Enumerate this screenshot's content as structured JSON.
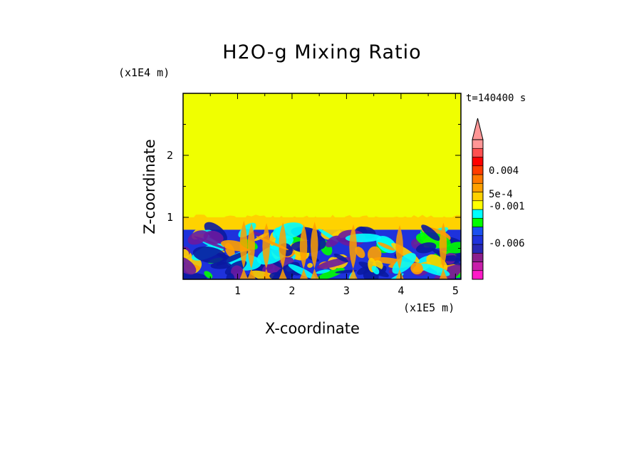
{
  "chart_data": {
    "type": "heatmap",
    "title": "H2O-g Mixing Ratio",
    "xlabel": "X-coordinate",
    "ylabel": "Z-coordinate",
    "x_unit": "(x1E5 m)",
    "y_unit": "(x1E4 m)",
    "time_label": "t=140400 s",
    "xlim": [
      0,
      5.1
    ],
    "ylim": [
      0,
      3.0
    ],
    "x_ticks": [
      "1",
      "2",
      "3",
      "4",
      "5"
    ],
    "y_ticks": [
      "1",
      "2"
    ],
    "colorbar": {
      "colors": [
        "#ff1ac8",
        "#c81eaa",
        "#8c1e8c",
        "#2828b4",
        "#1e32dc",
        "#1a50f0",
        "#00ff00",
        "#00ffff",
        "#ffff00",
        "#ffd200",
        "#ffa000",
        "#ff7800",
        "#ff3c00",
        "#ff0000",
        "#ff5050",
        "#ff9696"
      ],
      "labels": [
        "0.004",
        "5e-4",
        "-0.001",
        "-0.006"
      ],
      "extend_top": true
    },
    "regions": [
      {
        "name": "upper layer",
        "color": "#f0ff00",
        "z_range": [
          1.0,
          3.0
        ]
      },
      {
        "name": "transition band",
        "color": "#ffd200",
        "z_range": [
          0.8,
          1.0
        ]
      },
      {
        "name": "lower turbulent layer",
        "color": "#1e32dc",
        "z_range": [
          0,
          0.8
        ]
      }
    ],
    "grid": false
  },
  "colors": {
    "upper": "#f0ff00",
    "band": "#ffd200",
    "lower": "#1e32dc",
    "deep_blue": "#0a1aa0",
    "cyan": "#00ffff",
    "green": "#00ff00",
    "orange": "#ffa000",
    "purple": "#6a1aa0"
  }
}
